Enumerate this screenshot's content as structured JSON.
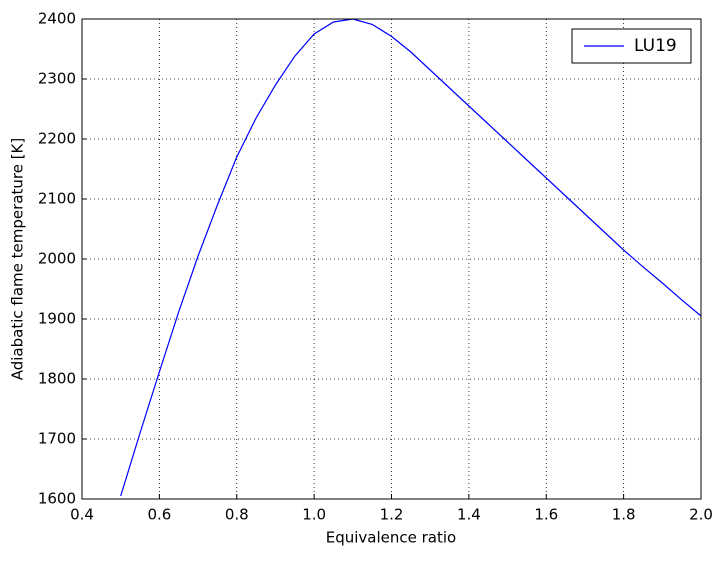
{
  "chart_data": {
    "type": "line",
    "xlabel": "Equivalence ratio",
    "ylabel": "Adiabatic flame temperature [K]",
    "x": [
      0.5,
      0.55,
      0.6,
      0.65,
      0.7,
      0.75,
      0.8,
      0.85,
      0.9,
      0.95,
      1.0,
      1.05,
      1.1,
      1.15,
      1.2,
      1.25,
      1.3,
      1.35,
      1.4,
      1.45,
      1.5,
      1.55,
      1.6,
      1.65,
      1.7,
      1.75,
      1.8,
      1.85,
      1.9,
      1.95,
      2.0
    ],
    "series": [
      {
        "name": "LU19",
        "color": "#0000ff",
        "values": [
          1605,
          1710,
          1812,
          1912,
          2005,
          2090,
          2170,
          2235,
          2290,
          2338,
          2375,
          2395,
          2400,
          2391,
          2371,
          2345,
          2315,
          2285,
          2255,
          2225,
          2195,
          2165,
          2135,
          2105,
          2075,
          2045,
          2015,
          1987,
          1960,
          1932,
          1905
        ]
      }
    ],
    "xlim": [
      0.4,
      2.0
    ],
    "ylim": [
      1600,
      2400
    ],
    "xticks": [
      0.4,
      0.6,
      0.8,
      {
        "value": 1,
        "label": "1.0"
      },
      1.2,
      1.4,
      1.6,
      1.8,
      {
        "value": 2,
        "label": "2.0"
      }
    ],
    "yticks": [
      1600,
      1700,
      1800,
      1900,
      2000,
      2100,
      2200,
      2300,
      2400
    ],
    "grid": true,
    "legend": "upper right"
  }
}
